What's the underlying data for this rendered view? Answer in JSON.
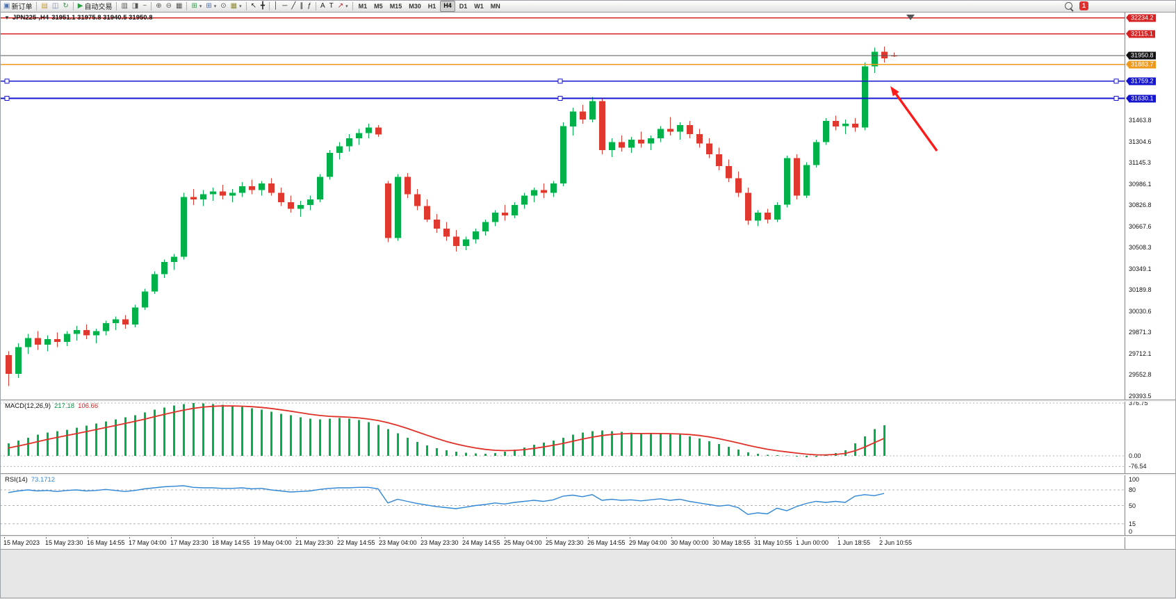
{
  "window": {
    "notification_count": "1"
  },
  "toolbar": {
    "timeframes": [
      "M1",
      "M5",
      "M15",
      "M30",
      "H1",
      "H4",
      "D1",
      "W1",
      "MN"
    ],
    "active_timeframe": "H4",
    "items": [
      {
        "name": "new-order-button",
        "glyph": "▣",
        "glyph_color": "#4a72b0",
        "label": "新订单"
      },
      {
        "sep": true
      },
      {
        "name": "new-chart-button",
        "glyph": "▤",
        "glyph_color": "#c09a30"
      },
      {
        "name": "profiles-button",
        "glyph": "◫",
        "glyph_color": "#6d88ab"
      },
      {
        "name": "refresh-button",
        "glyph": "↻",
        "glyph_color": "#3c8a46"
      },
      {
        "sep": true
      },
      {
        "name": "auto-trading-button",
        "glyph": "▶",
        "glyph_color": "#2f9e44",
        "label": "自动交易"
      },
      {
        "sep": true
      },
      {
        "name": "bar-chart-button",
        "glyph": "▥",
        "glyph_color": "#555555"
      },
      {
        "name": "candlestick-chart-button",
        "glyph": "◨",
        "glyph_color": "#555555"
      },
      {
        "name": "line-chart-button",
        "glyph": "~",
        "glyph_color": "#555555"
      },
      {
        "sep": true
      },
      {
        "name": "zoom-in-button",
        "glyph": "⊕",
        "glyph_color": "#555555"
      },
      {
        "name": "zoom-out-button",
        "glyph": "⊖",
        "glyph_color": "#555555"
      },
      {
        "name": "tile-windows-button",
        "glyph": "▦",
        "glyph_color": "#555555"
      },
      {
        "sep": true
      },
      {
        "name": "indicators-button",
        "glyph": "⊞",
        "glyph_color": "#2f9e44",
        "dropdown": true
      },
      {
        "name": "objects-button",
        "glyph": "⊞",
        "glyph_color": "#4a72b0",
        "dropdown": true
      },
      {
        "name": "auto-scroll-button",
        "glyph": "⊙",
        "glyph_color": "#555555"
      },
      {
        "name": "templates-button",
        "glyph": "▦",
        "glyph_color": "#8a8a33",
        "dropdown": true
      },
      {
        "sep": true
      },
      {
        "name": "cursor-button",
        "glyph": "↖",
        "glyph_color": "#222222"
      },
      {
        "name": "crosshair-button",
        "glyph": "╋",
        "glyph_color": "#222222"
      },
      {
        "sep": true
      },
      {
        "name": "vertical-line-button",
        "glyph": "│",
        "glyph_color": "#222222"
      },
      {
        "name": "horizontal-line-button",
        "glyph": "─",
        "glyph_color": "#222222"
      },
      {
        "name": "trendline-button",
        "glyph": "╱",
        "glyph_color": "#222222"
      },
      {
        "name": "channel-button",
        "glyph": "∥",
        "glyph_color": "#222222"
      },
      {
        "name": "fibonacci-button",
        "glyph": "ƒ",
        "glyph_color": "#222222"
      },
      {
        "sep": true
      },
      {
        "name": "text-button",
        "glyph": "A",
        "glyph_color": "#222222"
      },
      {
        "name": "label-button",
        "glyph": "T",
        "glyph_color": "#222222"
      },
      {
        "name": "arrows-button",
        "glyph": "↗",
        "glyph_color": "#b03030",
        "dropdown": true
      },
      {
        "sep": true
      }
    ]
  },
  "chart": {
    "collapse_glyph": "▼",
    "title_symbol": "JPN225-,H4",
    "title_ohlc": "31951.1 31975.8 31940.5 31950.8",
    "levels": [
      {
        "name": "resistance-line-upper",
        "price": 32234.2,
        "label": "32234.2",
        "color": "#d62222",
        "box": "#d62222"
      },
      {
        "name": "resistance-line-lower",
        "price": 32115.1,
        "label": "32115.1",
        "color": "#d62222",
        "box": "#d62222"
      },
      {
        "name": "bid-price-line",
        "price": 31950.8,
        "label": "31950.8",
        "color": "#555555",
        "box": "#141414",
        "thin": true
      },
      {
        "name": "orange-level-line",
        "price": 31883.7,
        "label": "31883.7",
        "color": "#ef9a1d",
        "box": "#ef9a1d"
      },
      {
        "name": "blue-support-line-upper",
        "price": 31759.2,
        "label": "31759.2",
        "color": "#1515cd",
        "box": "#1515cd",
        "handles": true
      },
      {
        "name": "blue-support-line-lower",
        "price": 31630.1,
        "label": "31630.1",
        "color": "#1515cd",
        "box": "#1515cd",
        "handles": true
      }
    ]
  },
  "chart_data": {
    "type": "candlestick",
    "symbol": "JPN225-",
    "timeframe": "H4",
    "current_ohlc": {
      "open": 31951.1,
      "high": 31975.8,
      "low": 31940.5,
      "close": 31950.8
    },
    "y_range": [
      29367,
      32280
    ],
    "y_ticks": [
      "31463.8",
      "31304.6",
      "31145.3",
      "30986.1",
      "30826.8",
      "30667.6",
      "30508.3",
      "30349.1",
      "30189.8",
      "30030.6",
      "29871.3",
      "29712.1",
      "29552.8",
      "29393.5"
    ],
    "x_labels": [
      "15 May 2023",
      "15 May 23:30",
      "16 May 14:55",
      "17 May 04:00",
      "17 May 23:30",
      "18 May 14:55",
      "19 May 04:00",
      "21 May 23:30",
      "22 May 14:55",
      "23 May 04:00",
      "23 May 23:30",
      "24 May 14:55",
      "25 May 04:00",
      "25 May 23:30",
      "26 May 14:55",
      "29 May 04:00",
      "30 May 00:00",
      "30 May 18:55",
      "31 May 10:55",
      "1 Jun 00:00",
      "1 Jun 18:55",
      "2 Jun 10:55"
    ],
    "candles": [
      [
        29700,
        29730,
        29470,
        29560
      ],
      [
        29560,
        29790,
        29530,
        29760
      ],
      [
        29760,
        29860,
        29710,
        29830
      ],
      [
        29830,
        29880,
        29740,
        29780
      ],
      [
        29780,
        29850,
        29730,
        29820
      ],
      [
        29820,
        29870,
        29760,
        29800
      ],
      [
        29800,
        29880,
        29770,
        29860
      ],
      [
        29860,
        29920,
        29810,
        29890
      ],
      [
        29890,
        29930,
        29820,
        29850
      ],
      [
        29850,
        29900,
        29790,
        29880
      ],
      [
        29880,
        29960,
        29850,
        29940
      ],
      [
        29940,
        29990,
        29890,
        29970
      ],
      [
        29970,
        30000,
        29900,
        29930
      ],
      [
        29930,
        30080,
        29910,
        30060
      ],
      [
        30060,
        30200,
        30040,
        30180
      ],
      [
        30180,
        30330,
        30160,
        30310
      ],
      [
        30310,
        30420,
        30280,
        30400
      ],
      [
        30400,
        30460,
        30340,
        30440
      ],
      [
        30440,
        30920,
        30420,
        30890
      ],
      [
        30890,
        30950,
        30830,
        30870
      ],
      [
        30870,
        30940,
        30820,
        30910
      ],
      [
        30910,
        30960,
        30860,
        30930
      ],
      [
        30930,
        30980,
        30870,
        30900
      ],
      [
        30900,
        30950,
        30850,
        30920
      ],
      [
        30920,
        31000,
        30890,
        30970
      ],
      [
        30970,
        31020,
        30910,
        30940
      ],
      [
        30940,
        31010,
        30900,
        30990
      ],
      [
        30990,
        31030,
        30900,
        30920
      ],
      [
        30920,
        30960,
        30820,
        30850
      ],
      [
        30850,
        30900,
        30770,
        30800
      ],
      [
        30800,
        30860,
        30740,
        30830
      ],
      [
        30830,
        30900,
        30790,
        30870
      ],
      [
        30870,
        31060,
        30850,
        31040
      ],
      [
        31040,
        31240,
        31020,
        31220
      ],
      [
        31220,
        31300,
        31170,
        31270
      ],
      [
        31270,
        31360,
        31230,
        31330
      ],
      [
        31330,
        31400,
        31280,
        31370
      ],
      [
        31370,
        31440,
        31330,
        31410
      ],
      [
        31410,
        31430,
        31340,
        31360
      ],
      [
        30990,
        31010,
        30550,
        30580
      ],
      [
        30580,
        31060,
        30560,
        31040
      ],
      [
        31040,
        31070,
        30880,
        30910
      ],
      [
        30910,
        30950,
        30790,
        30820
      ],
      [
        30820,
        30870,
        30700,
        30720
      ],
      [
        30720,
        30760,
        30620,
        30650
      ],
      [
        30650,
        30700,
        30560,
        30590
      ],
      [
        30590,
        30640,
        30480,
        30520
      ],
      [
        30520,
        30590,
        30490,
        30570
      ],
      [
        30570,
        30650,
        30540,
        30630
      ],
      [
        30630,
        30720,
        30600,
        30700
      ],
      [
        30700,
        30790,
        30670,
        30770
      ],
      [
        30770,
        30830,
        30710,
        30750
      ],
      [
        30750,
        30850,
        30730,
        30830
      ],
      [
        30830,
        30920,
        30800,
        30900
      ],
      [
        30900,
        30960,
        30850,
        30940
      ],
      [
        30940,
        30990,
        30880,
        30920
      ],
      [
        30920,
        31010,
        30890,
        30990
      ],
      [
        30990,
        31450,
        30970,
        31420
      ],
      [
        31420,
        31560,
        31350,
        31530
      ],
      [
        31530,
        31580,
        31440,
        31470
      ],
      [
        31470,
        31640,
        31450,
        31610
      ],
      [
        31610,
        31630,
        31210,
        31240
      ],
      [
        31240,
        31330,
        31190,
        31300
      ],
      [
        31300,
        31350,
        31230,
        31260
      ],
      [
        31260,
        31340,
        31220,
        31320
      ],
      [
        31320,
        31380,
        31260,
        31290
      ],
      [
        31290,
        31350,
        31240,
        31330
      ],
      [
        31330,
        31420,
        31300,
        31400
      ],
      [
        31400,
        31490,
        31350,
        31380
      ],
      [
        31380,
        31450,
        31320,
        31430
      ],
      [
        31430,
        31460,
        31330,
        31360
      ],
      [
        31360,
        31400,
        31260,
        31290
      ],
      [
        31290,
        31330,
        31180,
        31210
      ],
      [
        31210,
        31260,
        31090,
        31120
      ],
      [
        31120,
        31170,
        31000,
        31030
      ],
      [
        31030,
        31080,
        30890,
        30920
      ],
      [
        30920,
        30960,
        30680,
        30710
      ],
      [
        30710,
        30790,
        30670,
        30770
      ],
      [
        30770,
        30800,
        30690,
        30720
      ],
      [
        30720,
        30850,
        30700,
        30830
      ],
      [
        30830,
        31200,
        30810,
        31180
      ],
      [
        31180,
        31210,
        30870,
        30900
      ],
      [
        30900,
        31150,
        30880,
        31130
      ],
      [
        31130,
        31320,
        31110,
        31300
      ],
      [
        31300,
        31480,
        31280,
        31460
      ],
      [
        31460,
        31500,
        31390,
        31420
      ],
      [
        31420,
        31470,
        31360,
        31440
      ],
      [
        31440,
        31480,
        31380,
        31410
      ],
      [
        31410,
        31900,
        31390,
        31870
      ],
      [
        31870,
        32010,
        31820,
        31980
      ],
      [
        31980,
        32020,
        31900,
        31930
      ],
      [
        31951.1,
        31975.8,
        31940.5,
        31950.8
      ]
    ],
    "macd": {
      "label": "MACD(12,26,9)",
      "main_value": "217.18",
      "signal_value": "106.66",
      "axis": [
        "376.75",
        "0.00",
        "-76.54"
      ],
      "values": [
        90,
        110,
        130,
        150,
        165,
        175,
        185,
        200,
        215,
        230,
        245,
        260,
        275,
        290,
        310,
        330,
        345,
        360,
        370,
        376,
        375,
        370,
        365,
        355,
        350,
        340,
        330,
        315,
        300,
        290,
        275,
        265,
        260,
        265,
        270,
        265,
        255,
        240,
        220,
        190,
        160,
        130,
        100,
        75,
        55,
        40,
        30,
        22,
        18,
        15,
        20,
        30,
        45,
        60,
        80,
        95,
        110,
        130,
        150,
        165,
        175,
        180,
        175,
        170,
        165,
        160,
        160,
        158,
        155,
        150,
        140,
        125,
        105,
        85,
        65,
        45,
        25,
        15,
        8,
        5,
        2,
        -5,
        -10,
        -8,
        5,
        20,
        40,
        90,
        140,
        190,
        217.18
      ]
    },
    "rsi": {
      "label": "RSI(14)",
      "value": "73.1712",
      "axis": [
        "100",
        "80",
        "50",
        "15",
        "0"
      ],
      "levels": [
        80,
        50,
        15
      ],
      "values": [
        75,
        78,
        80,
        78,
        79,
        77,
        79,
        80,
        78,
        79,
        81,
        79,
        77,
        79,
        82,
        84,
        86,
        87,
        88,
        85,
        84,
        84,
        83,
        83,
        84,
        82,
        83,
        80,
        78,
        76,
        77,
        78,
        81,
        83,
        84,
        84,
        85,
        85,
        82,
        55,
        62,
        58,
        54,
        51,
        48,
        46,
        44,
        47,
        50,
        52,
        55,
        53,
        56,
        58,
        60,
        58,
        61,
        68,
        70,
        67,
        71,
        60,
        62,
        60,
        61,
        59,
        61,
        63,
        60,
        62,
        58,
        55,
        52,
        49,
        51,
        46,
        33,
        36,
        34,
        45,
        40,
        48,
        54,
        58,
        56,
        58,
        56,
        68,
        71,
        69,
        73.1712
      ]
    },
    "annotation_arrow": {
      "tail_xy": [
        1348,
        200
      ],
      "head_xy": [
        1281,
        107
      ],
      "color": "#ff1a1a"
    }
  },
  "colors": {
    "up": "#00b048",
    "down": "#e0382e",
    "macd_hist": "#00b048",
    "macd_signal": "#e03028",
    "rsi_line": "#2e86d5",
    "grid": "#b0b0b0"
  }
}
